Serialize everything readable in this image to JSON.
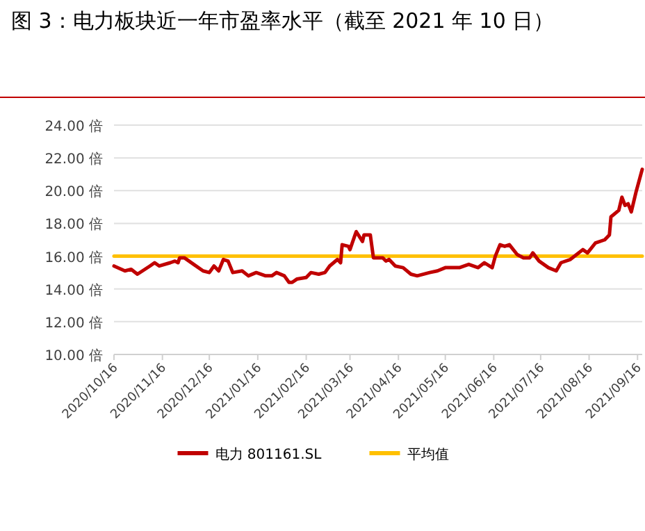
{
  "chart_data": {
    "type": "line",
    "title": "图 3：电力板块近一年市盈率水平（截至 2021 年 10 日）",
    "x": [
      "2020-10-16",
      "2020-10-23",
      "2020-10-27",
      "2020-10-31",
      "2020-11-08",
      "2020-11-11",
      "2020-11-14",
      "2020-11-21",
      "2020-11-24",
      "2020-11-26",
      "2020-11-27",
      "2020-11-30",
      "2020-12-06",
      "2020-12-12",
      "2020-12-16",
      "2020-12-19",
      "2020-12-22",
      "2020-12-25",
      "2020-12-28",
      "2020-12-31",
      "2021-01-06",
      "2021-01-10",
      "2021-01-15",
      "2021-01-21",
      "2021-01-25",
      "2021-01-28",
      "2021-02-02",
      "2021-02-05",
      "2021-02-07",
      "2021-02-10",
      "2021-02-16",
      "2021-02-19",
      "2021-02-24",
      "2021-02-28",
      "2021-03-03",
      "2021-03-08",
      "2021-03-10",
      "2021-03-11",
      "2021-03-15",
      "2021-03-16",
      "2021-03-20",
      "2021-03-24",
      "2021-03-25",
      "2021-03-29",
      "2021-03-31",
      "2021-04-06",
      "2021-04-08",
      "2021-04-10",
      "2021-04-14",
      "2021-04-19",
      "2021-04-24",
      "2021-04-28",
      "2021-05-06",
      "2021-05-11",
      "2021-05-16",
      "2021-05-25",
      "2021-05-31",
      "2021-06-06",
      "2021-06-10",
      "2021-06-15",
      "2021-06-17",
      "2021-06-20",
      "2021-06-23",
      "2021-06-26",
      "2021-07-01",
      "2021-07-05",
      "2021-07-09",
      "2021-07-11",
      "2021-07-15",
      "2021-07-21",
      "2021-07-26",
      "2021-07-29",
      "2021-08-04",
      "2021-08-08",
      "2021-08-12",
      "2021-08-15",
      "2021-08-20",
      "2021-08-26",
      "2021-08-29",
      "2021-08-30",
      "2021-09-04",
      "2021-09-06",
      "2021-09-08",
      "2021-09-10",
      "2021-09-12",
      "2021-09-15",
      "2021-09-19"
    ],
    "series": [
      {
        "name": "电力 801161.SL",
        "color": "#c00000",
        "values": [
          15.4,
          15.1,
          15.2,
          14.9,
          15.4,
          15.6,
          15.4,
          15.6,
          15.7,
          15.6,
          15.9,
          15.9,
          15.5,
          15.1,
          15.0,
          15.4,
          15.1,
          15.8,
          15.7,
          15.0,
          15.1,
          14.8,
          15.0,
          14.8,
          14.8,
          15.0,
          14.8,
          14.4,
          14.4,
          14.6,
          14.7,
          15.0,
          14.9,
          15.0,
          15.4,
          15.8,
          15.6,
          16.7,
          16.6,
          16.4,
          17.5,
          16.9,
          17.3,
          17.3,
          15.9,
          15.9,
          15.7,
          15.8,
          15.4,
          15.3,
          14.9,
          14.8,
          15.0,
          15.1,
          15.3,
          15.3,
          15.5,
          15.3,
          15.6,
          15.3,
          16.0,
          16.7,
          16.6,
          16.7,
          16.1,
          15.9,
          15.9,
          16.2,
          15.7,
          15.3,
          15.1,
          15.6,
          15.8,
          16.1,
          16.4,
          16.2,
          16.8,
          17.0,
          17.3,
          18.4,
          18.8,
          19.6,
          19.1,
          19.2,
          18.7,
          19.9,
          21.3
        ]
      },
      {
        "name": "平均值",
        "color": "#ffc000",
        "x": [
          "2020-10-16",
          "2021-09-19"
        ],
        "values": [
          16.0,
          16.0
        ]
      }
    ],
    "xlim": [
      "2020-10-16",
      "2021-09-19"
    ],
    "xticks": [
      {
        "value": "2020-10-16",
        "label": "2020/10/16"
      },
      {
        "value": "2020-11-16",
        "label": "2020/11/16"
      },
      {
        "value": "2020-12-16",
        "label": "2020/12/16"
      },
      {
        "value": "2021-01-16",
        "label": "2021/01/16"
      },
      {
        "value": "2021-02-16",
        "label": "2021/02/16"
      },
      {
        "value": "2021-03-16",
        "label": "2021/03/16"
      },
      {
        "value": "2021-04-16",
        "label": "2021/04/16"
      },
      {
        "value": "2021-05-16",
        "label": "2021/05/16"
      },
      {
        "value": "2021-06-16",
        "label": "2021/06/16"
      },
      {
        "value": "2021-07-16",
        "label": "2021/07/16"
      },
      {
        "value": "2021-08-16",
        "label": "2021/08/16"
      },
      {
        "value": "2021-09-16",
        "label": "2021/09/16"
      }
    ],
    "ylim": [
      10,
      24
    ],
    "yticks": [
      {
        "value": 10,
        "label": "10.00 倍"
      },
      {
        "value": 12,
        "label": "12.00 倍"
      },
      {
        "value": 14,
        "label": "14.00 倍"
      },
      {
        "value": 16,
        "label": "16.00 倍"
      },
      {
        "value": 18,
        "label": "18.00 倍"
      },
      {
        "value": 20,
        "label": "20.00 倍"
      },
      {
        "value": 22,
        "label": "22.00 倍"
      },
      {
        "value": 24,
        "label": "24.00 倍"
      }
    ],
    "grid": "y",
    "legend": "bottom"
  }
}
